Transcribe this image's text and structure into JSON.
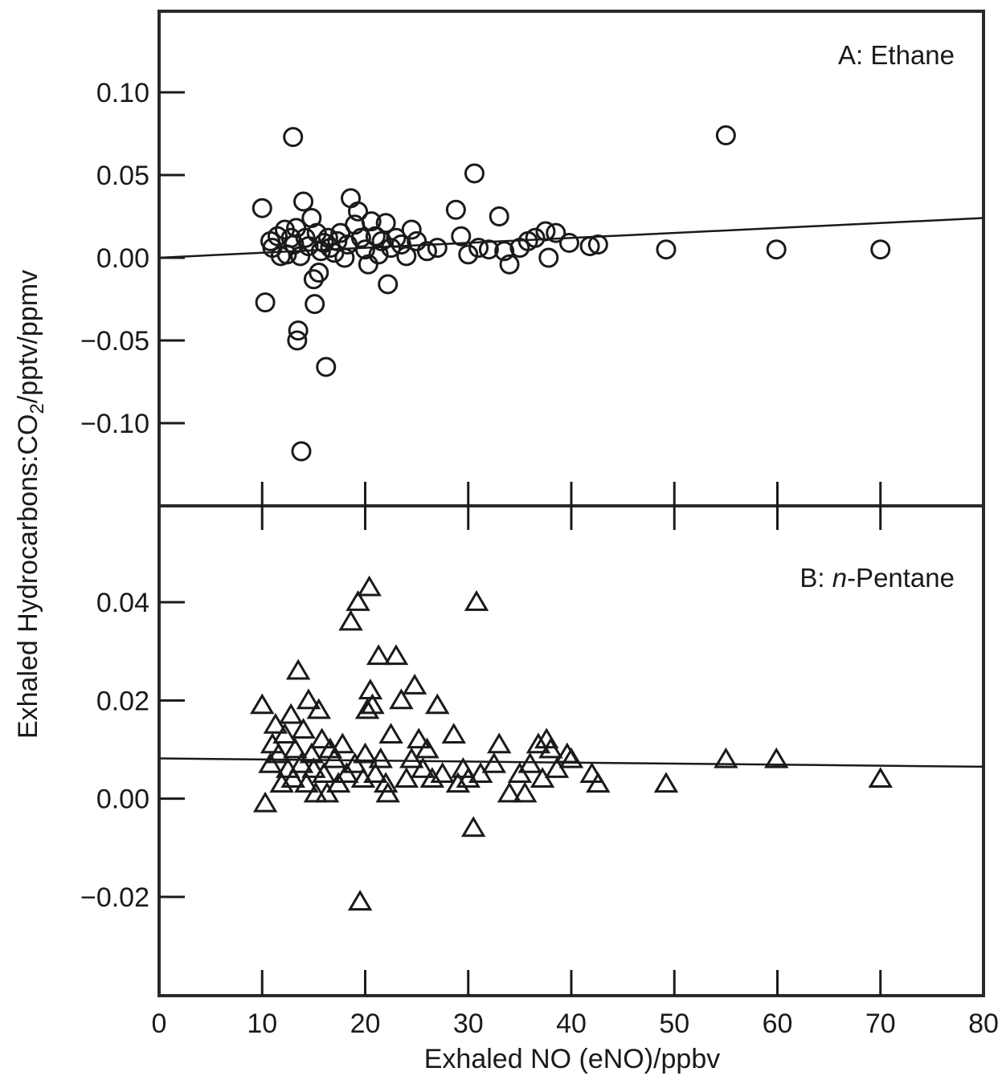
{
  "chart_data": {
    "type": "scatter",
    "xlabel": "Exhaled NO (eNO)/ppbv",
    "ylabel_parts": [
      "Exhaled Hydrocarbons:CO",
      "2",
      "/pptv/ppmv"
    ],
    "xlim": [
      0,
      80
    ],
    "xticks": [
      0,
      10,
      20,
      30,
      40,
      50,
      60,
      70,
      80
    ],
    "xtick_labels": [
      "0",
      "10",
      "20",
      "30",
      "40",
      "50",
      "60",
      "70",
      "80"
    ],
    "panels": [
      {
        "id": "A",
        "title_prefix": "A: ",
        "title_italic": "",
        "title_rest": "Ethane",
        "marker": "circle",
        "ylim": [
          -0.15,
          0.15
        ],
        "yticks": [
          0.1,
          0.05,
          0.0,
          -0.05,
          -0.1
        ],
        "ytick_labels": [
          "0.10",
          "0.05",
          "0.00",
          "−0.05",
          "−0.10"
        ],
        "fit_line": {
          "x": [
            0,
            80
          ],
          "y": [
            0.0,
            0.024
          ]
        },
        "points": [
          {
            "x": 10.0,
            "y": 0.03
          },
          {
            "x": 10.3,
            "y": -0.027
          },
          {
            "x": 10.8,
            "y": 0.01
          },
          {
            "x": 11.0,
            "y": 0.006
          },
          {
            "x": 11.5,
            "y": 0.013
          },
          {
            "x": 11.8,
            "y": 0.001
          },
          {
            "x": 12.2,
            "y": 0.017
          },
          {
            "x": 12.4,
            "y": 0.002
          },
          {
            "x": 12.8,
            "y": 0.012
          },
          {
            "x": 13.0,
            "y": 0.073
          },
          {
            "x": 13.1,
            "y": 0.008
          },
          {
            "x": 13.3,
            "y": 0.018
          },
          {
            "x": 13.4,
            "y": -0.05
          },
          {
            "x": 13.5,
            "y": -0.044
          },
          {
            "x": 13.7,
            "y": 0.001
          },
          {
            "x": 13.8,
            "y": -0.117
          },
          {
            "x": 14.0,
            "y": 0.034
          },
          {
            "x": 14.2,
            "y": 0.012
          },
          {
            "x": 14.5,
            "y": 0.007
          },
          {
            "x": 14.8,
            "y": 0.024
          },
          {
            "x": 15.0,
            "y": -0.013
          },
          {
            "x": 15.1,
            "y": -0.028
          },
          {
            "x": 15.3,
            "y": 0.015
          },
          {
            "x": 15.5,
            "y": -0.009
          },
          {
            "x": 15.7,
            "y": 0.004
          },
          {
            "x": 16.0,
            "y": 0.009
          },
          {
            "x": 16.2,
            "y": -0.066
          },
          {
            "x": 16.4,
            "y": 0.012
          },
          {
            "x": 16.6,
            "y": 0.006
          },
          {
            "x": 17.0,
            "y": 0.003
          },
          {
            "x": 17.3,
            "y": 0.01
          },
          {
            "x": 17.6,
            "y": 0.015
          },
          {
            "x": 18.0,
            "y": 0.0
          },
          {
            "x": 18.3,
            "y": 0.008
          },
          {
            "x": 18.6,
            "y": 0.036
          },
          {
            "x": 19.0,
            "y": 0.02
          },
          {
            "x": 19.3,
            "y": 0.028
          },
          {
            "x": 19.6,
            "y": 0.012
          },
          {
            "x": 20.0,
            "y": 0.005
          },
          {
            "x": 20.3,
            "y": -0.004
          },
          {
            "x": 20.6,
            "y": 0.022
          },
          {
            "x": 21.0,
            "y": 0.013
          },
          {
            "x": 21.3,
            "y": 0.002
          },
          {
            "x": 21.6,
            "y": 0.01
          },
          {
            "x": 22.0,
            "y": 0.021
          },
          {
            "x": 22.2,
            "y": -0.016
          },
          {
            "x": 22.5,
            "y": 0.006
          },
          {
            "x": 23.0,
            "y": 0.012
          },
          {
            "x": 23.5,
            "y": 0.008
          },
          {
            "x": 24.0,
            "y": 0.001
          },
          {
            "x": 24.5,
            "y": 0.017
          },
          {
            "x": 25.0,
            "y": 0.01
          },
          {
            "x": 26.0,
            "y": 0.004
          },
          {
            "x": 27.0,
            "y": 0.006
          },
          {
            "x": 28.8,
            "y": 0.029
          },
          {
            "x": 29.3,
            "y": 0.013
          },
          {
            "x": 30.0,
            "y": 0.002
          },
          {
            "x": 30.6,
            "y": 0.051
          },
          {
            "x": 31.0,
            "y": 0.006
          },
          {
            "x": 32.0,
            "y": 0.005
          },
          {
            "x": 33.0,
            "y": 0.025
          },
          {
            "x": 33.5,
            "y": 0.004
          },
          {
            "x": 34.0,
            "y": -0.004
          },
          {
            "x": 35.0,
            "y": 0.006
          },
          {
            "x": 35.8,
            "y": 0.01
          },
          {
            "x": 36.5,
            "y": 0.012
          },
          {
            "x": 37.5,
            "y": 0.016
          },
          {
            "x": 37.8,
            "y": 0.0
          },
          {
            "x": 38.5,
            "y": 0.015
          },
          {
            "x": 39.8,
            "y": 0.009
          },
          {
            "x": 41.8,
            "y": 0.007
          },
          {
            "x": 42.6,
            "y": 0.008
          },
          {
            "x": 49.2,
            "y": 0.005
          },
          {
            "x": 55.0,
            "y": 0.074
          },
          {
            "x": 59.9,
            "y": 0.005
          },
          {
            "x": 70.0,
            "y": 0.005
          }
        ]
      },
      {
        "id": "B",
        "title_prefix": "B: ",
        "title_italic": "n",
        "title_rest": "-Pentane",
        "marker": "triangle",
        "ylim": [
          -0.04,
          0.06
        ],
        "yticks": [
          0.04,
          0.02,
          0.0,
          -0.02
        ],
        "ytick_labels": [
          "0.04",
          "0.02",
          "0.00",
          "−0.02"
        ],
        "fit_line": {
          "x": [
            0,
            80
          ],
          "y": [
            0.0082,
            0.0065
          ]
        },
        "points": [
          {
            "x": 10.0,
            "y": 0.019
          },
          {
            "x": 10.3,
            "y": -0.001
          },
          {
            "x": 10.8,
            "y": 0.007
          },
          {
            "x": 11.0,
            "y": 0.011
          },
          {
            "x": 11.3,
            "y": 0.015
          },
          {
            "x": 11.6,
            "y": 0.009
          },
          {
            "x": 11.9,
            "y": 0.003
          },
          {
            "x": 12.2,
            "y": 0.013
          },
          {
            "x": 12.5,
            "y": 0.006
          },
          {
            "x": 12.8,
            "y": 0.017
          },
          {
            "x": 13.0,
            "y": 0.004
          },
          {
            "x": 13.2,
            "y": 0.01
          },
          {
            "x": 13.5,
            "y": 0.026
          },
          {
            "x": 13.8,
            "y": 0.007
          },
          {
            "x": 14.0,
            "y": 0.014
          },
          {
            "x": 14.3,
            "y": 0.003
          },
          {
            "x": 14.5,
            "y": 0.02
          },
          {
            "x": 14.8,
            "y": 0.009
          },
          {
            "x": 15.0,
            "y": 0.006
          },
          {
            "x": 15.2,
            "y": 0.001
          },
          {
            "x": 15.5,
            "y": 0.018
          },
          {
            "x": 15.8,
            "y": 0.012
          },
          {
            "x": 16.0,
            "y": 0.005
          },
          {
            "x": 16.3,
            "y": 0.001
          },
          {
            "x": 16.6,
            "y": 0.01
          },
          {
            "x": 17.0,
            "y": 0.008
          },
          {
            "x": 17.4,
            "y": 0.003
          },
          {
            "x": 17.8,
            "y": 0.011
          },
          {
            "x": 18.2,
            "y": 0.005
          },
          {
            "x": 18.6,
            "y": 0.036
          },
          {
            "x": 19.0,
            "y": 0.007
          },
          {
            "x": 19.3,
            "y": 0.04
          },
          {
            "x": 19.5,
            "y": -0.021
          },
          {
            "x": 19.8,
            "y": 0.004
          },
          {
            "x": 20.0,
            "y": 0.009
          },
          {
            "x": 20.2,
            "y": 0.018
          },
          {
            "x": 20.4,
            "y": 0.043
          },
          {
            "x": 20.5,
            "y": 0.022
          },
          {
            "x": 20.7,
            "y": 0.019
          },
          {
            "x": 21.0,
            "y": 0.005
          },
          {
            "x": 21.3,
            "y": 0.029
          },
          {
            "x": 21.5,
            "y": 0.008
          },
          {
            "x": 22.0,
            "y": 0.003
          },
          {
            "x": 22.2,
            "y": 0.001
          },
          {
            "x": 22.5,
            "y": 0.013
          },
          {
            "x": 23.0,
            "y": 0.029
          },
          {
            "x": 23.5,
            "y": 0.02
          },
          {
            "x": 24.0,
            "y": 0.004
          },
          {
            "x": 24.5,
            "y": 0.008
          },
          {
            "x": 24.8,
            "y": 0.023
          },
          {
            "x": 25.2,
            "y": 0.012
          },
          {
            "x": 25.6,
            "y": 0.006
          },
          {
            "x": 26.0,
            "y": 0.01
          },
          {
            "x": 26.5,
            "y": 0.004
          },
          {
            "x": 27.0,
            "y": 0.019
          },
          {
            "x": 27.5,
            "y": 0.005
          },
          {
            "x": 28.6,
            "y": 0.013
          },
          {
            "x": 29.0,
            "y": 0.003
          },
          {
            "x": 29.5,
            "y": 0.006
          },
          {
            "x": 30.0,
            "y": 0.004
          },
          {
            "x": 30.5,
            "y": -0.006
          },
          {
            "x": 30.8,
            "y": 0.04
          },
          {
            "x": 31.2,
            "y": 0.005
          },
          {
            "x": 32.5,
            "y": 0.007
          },
          {
            "x": 33.0,
            "y": 0.011
          },
          {
            "x": 34.0,
            "y": 0.001
          },
          {
            "x": 35.0,
            "y": 0.005
          },
          {
            "x": 35.5,
            "y": 0.001
          },
          {
            "x": 36.0,
            "y": 0.007
          },
          {
            "x": 36.8,
            "y": 0.011
          },
          {
            "x": 37.2,
            "y": 0.004
          },
          {
            "x": 37.6,
            "y": 0.012
          },
          {
            "x": 38.0,
            "y": 0.01
          },
          {
            "x": 38.6,
            "y": 0.006
          },
          {
            "x": 39.6,
            "y": 0.009
          },
          {
            "x": 40.0,
            "y": 0.008
          },
          {
            "x": 42.0,
            "y": 0.005
          },
          {
            "x": 42.6,
            "y": 0.003
          },
          {
            "x": 49.2,
            "y": 0.003
          },
          {
            "x": 55.0,
            "y": 0.008
          },
          {
            "x": 59.9,
            "y": 0.008
          },
          {
            "x": 70.0,
            "y": 0.004
          }
        ]
      }
    ]
  }
}
